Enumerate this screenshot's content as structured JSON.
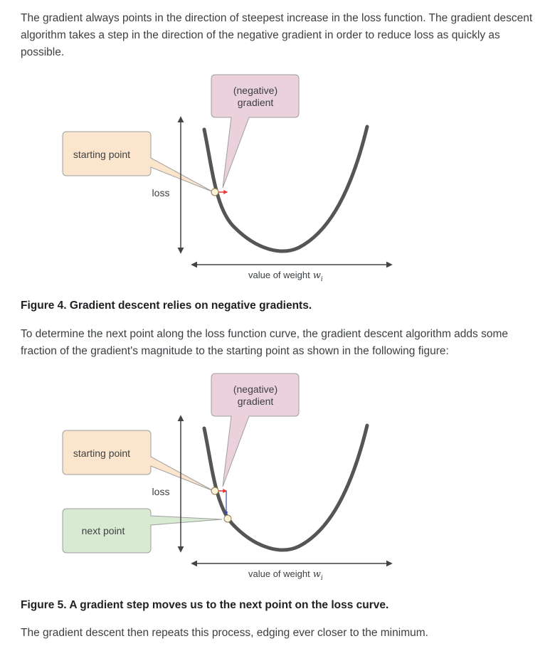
{
  "intro_paragraph": "The gradient always points in the direction of steepest increase in the loss function. The gradient descent algorithm takes a step in the direction of the negative gradient in order to reduce loss as quickly as possible.",
  "figure4": {
    "callout_gradient_line1": "(negative)",
    "callout_gradient_line2": "gradient",
    "callout_start": "starting point",
    "y_axis_label": "loss",
    "x_axis_label": "value of weight",
    "x_axis_symbol": "w",
    "x_axis_subscript": "i",
    "caption": "Figure 4. Gradient descent relies on negative gradients."
  },
  "middle_paragraph": "To determine the next point along the loss function curve, the gradient descent algorithm adds some fraction of the gradient's magnitude to the starting point as shown in the following figure:",
  "figure5": {
    "callout_gradient_line1": "(negative)",
    "callout_gradient_line2": "gradient",
    "callout_start": "starting point",
    "callout_next": "next point",
    "y_axis_label": "loss",
    "x_axis_label": "value of weight",
    "x_axis_symbol": "w",
    "x_axis_subscript": "i",
    "caption": "Figure 5. A gradient step moves us to the next point on the loss curve."
  },
  "closing_paragraph": "The gradient descent then repeats this process, edging ever closer to the minimum.",
  "colors": {
    "gradient_callout_fill": "#ead1dc",
    "start_callout_fill": "#fce5cd",
    "next_callout_fill": "#d9ead3",
    "curve": "#555555",
    "gradient_arrow": "#e53935",
    "step_arrow": "#3949ab"
  }
}
